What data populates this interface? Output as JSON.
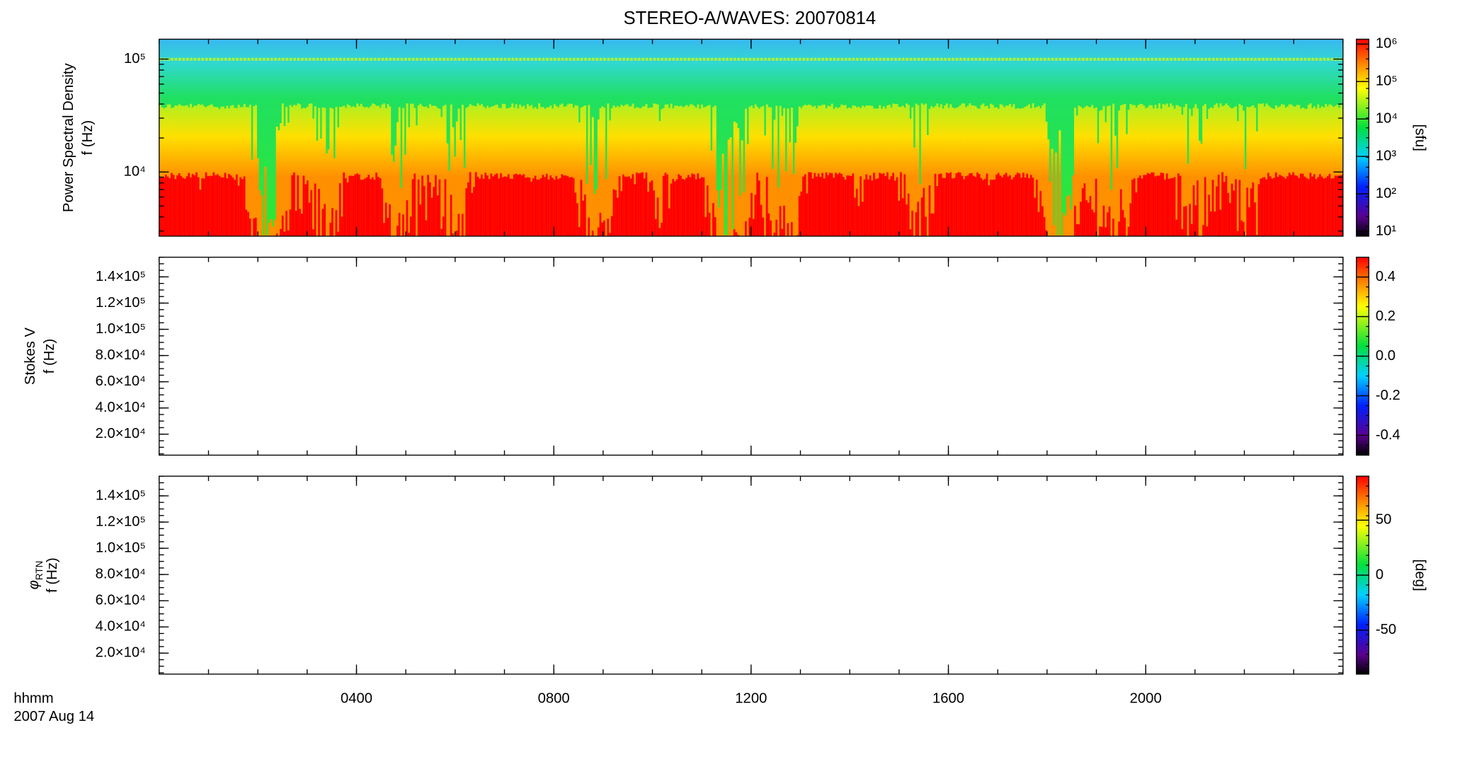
{
  "title": "STEREO-A/WAVES: 20070814",
  "x_axis": {
    "xlim": [
      0,
      24
    ],
    "xticks": [
      {
        "value": 4,
        "label": "0400"
      },
      {
        "value": 8,
        "label": "0800"
      },
      {
        "value": 12,
        "label": "1200"
      },
      {
        "value": 16,
        "label": "1600"
      },
      {
        "value": 20,
        "label": "2000"
      }
    ],
    "label": "hhmm",
    "date": "2007 Aug 14"
  },
  "chart_data": [
    {
      "type": "spectrogram",
      "ylabel": [
        "Power Spectral Density",
        "f (Hz)"
      ],
      "yscale": "log",
      "ylim": [
        2700,
        150000
      ],
      "yticks": [
        {
          "value": 10000,
          "label": "10⁴"
        },
        {
          "value": 100000,
          "label": "10⁵"
        }
      ],
      "colorbar": {
        "scale": "log",
        "clim": [
          7.4,
          1350000
        ],
        "ticks": [
          {
            "value": 10,
            "label": "10¹"
          },
          {
            "value": 100,
            "label": "10²"
          },
          {
            "value": 1000,
            "label": "10³"
          },
          {
            "value": 10000,
            "label": "10⁴"
          },
          {
            "value": 100000,
            "label": "10⁵"
          },
          {
            "value": 1000000,
            "label": "10⁶"
          }
        ],
        "label": "[sfu]"
      }
    },
    {
      "type": "spectrogram",
      "ylabel": [
        "Stokes V",
        "f (Hz)"
      ],
      "yscale": "linear",
      "ylim": [
        4000,
        155000
      ],
      "yticks": [
        {
          "value": 20000,
          "label": "2.0×10⁴"
        },
        {
          "value": 40000,
          "label": "4.0×10⁴"
        },
        {
          "value": 60000,
          "label": "6.0×10⁴"
        },
        {
          "value": 80000,
          "label": "8.0×10⁴"
        },
        {
          "value": 100000,
          "label": "1.0×10⁵"
        },
        {
          "value": 120000,
          "label": "1.2×10⁵"
        },
        {
          "value": 140000,
          "label": "1.4×10⁵"
        }
      ],
      "colorbar": {
        "scale": "linear",
        "clim": [
          -0.5,
          0.5
        ],
        "ticks": [
          -0.4,
          -0.2,
          {
            "value": 0,
            "label": "0.0"
          },
          0.2,
          0.4
        ]
      }
    },
    {
      "type": "spectrogram",
      "ylabel": [
        {
          "text": "φ",
          "sub": "RTN"
        },
        "f (Hz)"
      ],
      "yscale": "linear",
      "ylim": [
        4000,
        155000
      ],
      "yticks": [
        {
          "value": 20000,
          "label": "2.0×10⁴"
        },
        {
          "value": 40000,
          "label": "4.0×10⁴"
        },
        {
          "value": 60000,
          "label": "6.0×10⁴"
        },
        {
          "value": 80000,
          "label": "8.0×10⁴"
        },
        {
          "value": 100000,
          "label": "1.0×10⁵"
        },
        {
          "value": 120000,
          "label": "1.2×10⁵"
        },
        {
          "value": 140000,
          "label": "1.4×10⁵"
        }
      ],
      "colorbar": {
        "scale": "linear",
        "clim": [
          -90,
          90
        ],
        "ticks": [
          -50,
          0,
          50
        ],
        "label": "[deg]"
      }
    }
  ]
}
